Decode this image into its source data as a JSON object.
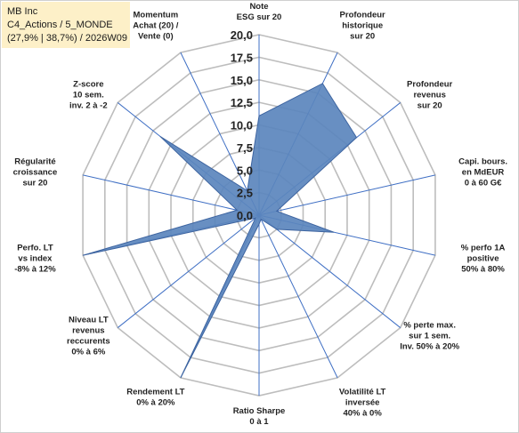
{
  "title_box": {
    "line1": "MB Inc",
    "line2": "C4_Actions / 5_MONDE",
    "line3": "(27,9% | 38,7%) / 2026W09"
  },
  "chart_data": {
    "type": "radar",
    "rmin": 0,
    "rmax": 20,
    "ticks": [
      "0,0",
      "2,5",
      "5,0",
      "7,5",
      "10,0",
      "12,5",
      "15,0",
      "17,5",
      "20,0"
    ],
    "axes": [
      {
        "label": [
          "Note",
          "ESG sur 20"
        ],
        "value": 11
      },
      {
        "label": [
          "Profondeur",
          "historique",
          "sur 20"
        ],
        "value": 16.2
      },
      {
        "label": [
          "Profondeur",
          "revenus",
          "sur 20"
        ],
        "value": 13.8
      },
      {
        "label": [
          "Capi. bours.",
          "en MdEUR",
          "0 à 60 G€"
        ],
        "value": 2
      },
      {
        "label": [
          "% perfo 1A",
          "positive",
          "50% à 80%"
        ],
        "value": 8.5
      },
      {
        "label": [
          "% perte max.",
          "sur 1 sem.",
          "Inv. 50% à 20%"
        ],
        "value": 2.5
      },
      {
        "label": [
          "Volatilité LT",
          "inversée",
          "40% à 0%"
        ],
        "value": 0.5
      },
      {
        "label": [
          "Ratio Sharpe",
          "0 à 1"
        ],
        "value": 1
      },
      {
        "label": [
          "Rendement LT",
          "0% à 20%"
        ],
        "value": 20
      },
      {
        "label": [
          "Niveau LT",
          "revenus",
          "reccurents",
          "0% à 6%"
        ],
        "value": 0.5
      },
      {
        "label": [
          "Perfo. LT",
          "vs index",
          "-8% à 12%"
        ],
        "value": 20
      },
      {
        "label": [
          "Régularité",
          "croissance",
          "sur 20"
        ],
        "value": 2.5
      },
      {
        "label": [
          "Z-score",
          "10 sem.",
          "inv. 2 à -2"
        ],
        "value": 14
      },
      {
        "label": [
          "Momentum",
          "Achat (20) /",
          "Vente (0)"
        ],
        "value": 3
      }
    ],
    "colors": {
      "fill": "#5b85bd",
      "stroke": "#3d64a0",
      "grid": "#bdbdbd",
      "spoke": "#3f6fc4"
    }
  }
}
